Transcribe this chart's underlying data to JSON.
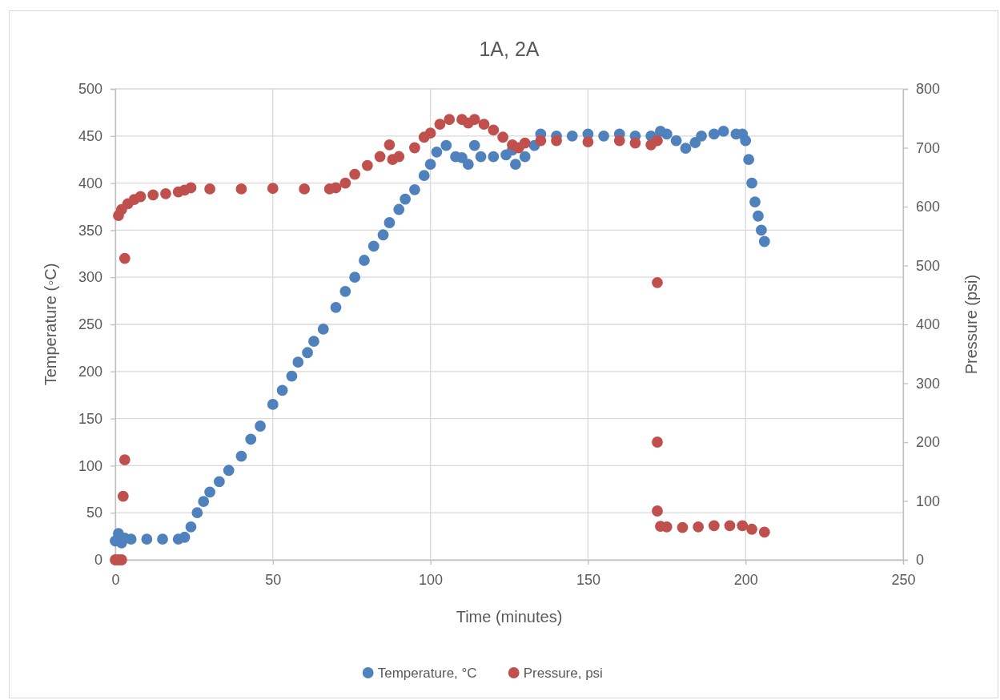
{
  "chart_data": {
    "type": "scatter",
    "title": "1A, 2A",
    "xlabel": "Time (minutes)",
    "ylabel": "Temperature (◦C)",
    "y2label": "Pressure (psi)",
    "xlim": [
      0,
      250
    ],
    "xticks": [
      0,
      50,
      100,
      150,
      200,
      250
    ],
    "ylim": [
      0,
      500
    ],
    "yticks": [
      0,
      50,
      100,
      150,
      200,
      250,
      300,
      350,
      400,
      450,
      500
    ],
    "y2lim": [
      0,
      800
    ],
    "y2ticks": [
      0,
      100,
      200,
      300,
      400,
      500,
      600,
      700,
      800
    ],
    "grid": true,
    "legend": "bottom",
    "marker": "circle",
    "series": [
      {
        "name": "Temperature, °C",
        "color": "#4f81bd",
        "x": [
          0,
          1,
          2,
          3,
          5,
          10,
          15,
          20,
          22,
          24,
          26,
          28,
          30,
          33,
          36,
          40,
          43,
          46,
          50,
          53,
          56,
          58,
          61,
          63,
          66,
          70,
          73,
          76,
          79,
          82,
          85,
          87,
          90,
          92,
          95,
          98,
          100,
          102,
          105,
          108,
          110,
          112,
          114,
          116,
          120,
          124,
          126,
          127,
          130,
          133,
          135,
          140,
          145,
          150,
          155,
          160,
          165,
          170,
          173,
          175,
          178,
          181,
          184,
          186,
          190,
          193,
          197,
          199,
          200,
          201,
          202,
          203,
          204,
          205,
          206
        ],
        "values": [
          20,
          28,
          18,
          23,
          22,
          22,
          22,
          22,
          24,
          35,
          50,
          62,
          72,
          83,
          95,
          110,
          128,
          142,
          165,
          180,
          195,
          210,
          220,
          232,
          245,
          268,
          285,
          300,
          318,
          333,
          345,
          358,
          372,
          383,
          393,
          408,
          420,
          433,
          440,
          428,
          427,
          420,
          440,
          428,
          428,
          430,
          435,
          420,
          428,
          440,
          452,
          450,
          450,
          452,
          450,
          452,
          450,
          450,
          455,
          452,
          445,
          437,
          443,
          450,
          452,
          455,
          452,
          452,
          445,
          425,
          400,
          380,
          365,
          350,
          338
        ]
      },
      {
        "name": "Pressure, psi",
        "color": "#c0504d",
        "axis": "y2",
        "x": [
          0,
          1,
          2,
          2.5,
          3,
          3,
          1,
          2,
          4,
          6,
          8,
          12,
          16,
          20,
          22,
          24,
          30,
          40,
          50,
          60,
          68,
          70,
          73,
          76,
          80,
          84,
          87,
          88,
          90,
          95,
          98,
          100,
          103,
          106,
          110,
          112,
          114,
          117,
          120,
          123,
          126,
          128,
          130,
          135,
          140,
          150,
          160,
          165,
          170,
          172,
          172,
          172,
          172,
          173,
          175,
          180,
          185,
          190,
          195,
          199,
          202,
          206
        ],
        "values": [
          0,
          0,
          0,
          108,
          170,
          512,
          585,
          595,
          605,
          612,
          617,
          620,
          622,
          625,
          628,
          632,
          630,
          630,
          631,
          630,
          630,
          632,
          640,
          655,
          670,
          685,
          705,
          680,
          685,
          700,
          718,
          725,
          740,
          748,
          748,
          742,
          748,
          740,
          730,
          718,
          705,
          700,
          708,
          712,
          712,
          710,
          712,
          708,
          705,
          712,
          471,
          200,
          83,
          57,
          56,
          55,
          56,
          58,
          58,
          58,
          52,
          47
        ]
      }
    ]
  }
}
